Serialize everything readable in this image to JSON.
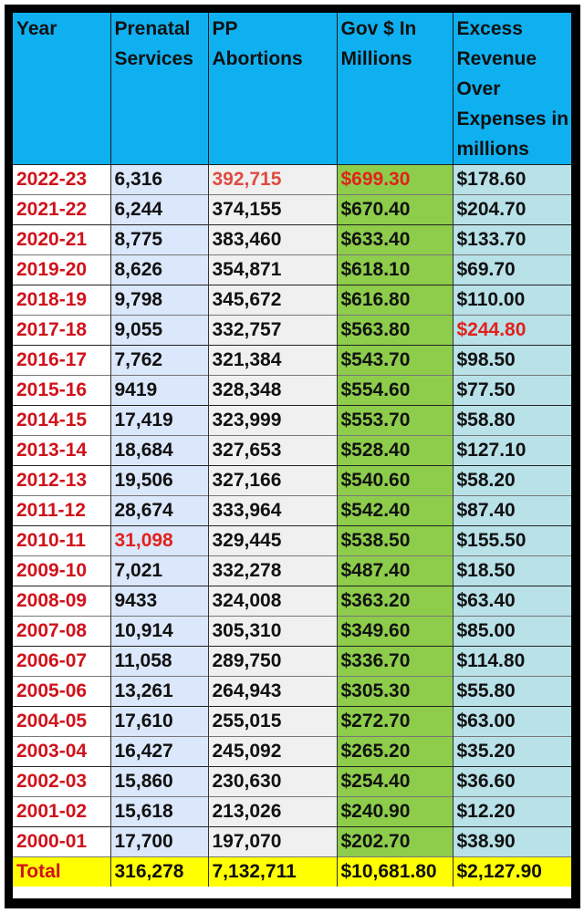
{
  "table": {
    "headers": {
      "year": [
        "Year"
      ],
      "prenatal": [
        "Prenatal",
        "Services"
      ],
      "pp_abortions": [
        "PP",
        "Abortions"
      ],
      "gov": [
        "Gov $ In",
        "Millions"
      ],
      "excess": [
        "Excess",
        "Revenue",
        "Over",
        "Expenses in",
        "millions"
      ]
    },
    "rows": [
      {
        "year": "2022-23",
        "prenatal": "6,316",
        "pp_abortions": "392,715",
        "gov": "$699.30",
        "excess": "$178.60",
        "highlight": [
          "pp_abortions",
          "gov"
        ]
      },
      {
        "year": "2021-22",
        "prenatal": "6,244",
        "pp_abortions": "374,155",
        "gov": "$670.40",
        "excess": "$204.70"
      },
      {
        "year": "2020-21",
        "prenatal": "8,775",
        "pp_abortions": "383,460",
        "gov": "$633.40",
        "excess": "$133.70"
      },
      {
        "year": "2019-20",
        "prenatal": "8,626",
        "pp_abortions": "354,871",
        "gov": "$618.10",
        "excess": "$69.70"
      },
      {
        "year": "2018-19",
        "prenatal": "9,798",
        "pp_abortions": "345,672",
        "gov": "$616.80",
        "excess": "$110.00"
      },
      {
        "year": "2017-18",
        "prenatal": "9,055",
        "pp_abortions": "332,757",
        "gov": "$563.80",
        "excess": "$244.80",
        "highlight": [
          "excess"
        ]
      },
      {
        "year": "2016-17",
        "prenatal": "7,762",
        "pp_abortions": "321,384",
        "gov": "$543.70",
        "excess": "$98.50"
      },
      {
        "year": "2015-16",
        "prenatal": "9419",
        "pp_abortions": "328,348",
        "gov": "$554.60",
        "excess": "$77.50"
      },
      {
        "year": "2014-15",
        "prenatal": "17,419",
        "pp_abortions": "323,999",
        "gov": "$553.70",
        "excess": "$58.80"
      },
      {
        "year": "2013-14",
        "prenatal": "18,684",
        "pp_abortions": "327,653",
        "gov": "$528.40",
        "excess": "$127.10"
      },
      {
        "year": "2012-13",
        "prenatal": "19,506",
        "pp_abortions": "327,166",
        "gov": "$540.60",
        "excess": "$58.20"
      },
      {
        "year": "2011-12",
        "prenatal": "28,674",
        "pp_abortions": "333,964",
        "gov": "$542.40",
        "excess": "$87.40"
      },
      {
        "year": "2010-11",
        "prenatal": "31,098",
        "pp_abortions": "329,445",
        "gov": "$538.50",
        "excess": "$155.50",
        "highlight": [
          "prenatal"
        ]
      },
      {
        "year": "2009-10",
        "prenatal": "7,021",
        "pp_abortions": "332,278",
        "gov": "$487.40",
        "excess": "$18.50"
      },
      {
        "year": "2008-09",
        "prenatal": "9433",
        "pp_abortions": "324,008",
        "gov": "$363.20",
        "excess": "$63.40"
      },
      {
        "year": "2007-08",
        "prenatal": "10,914",
        "pp_abortions": "305,310",
        "gov": "$349.60",
        "excess": "$85.00"
      },
      {
        "year": "2006-07",
        "prenatal": "11,058",
        "pp_abortions": "289,750",
        "gov": "$336.70",
        "excess": "$114.80"
      },
      {
        "year": "2005-06",
        "prenatal": "13,261",
        "pp_abortions": "264,943",
        "gov": "$305.30",
        "excess": "$55.80"
      },
      {
        "year": "2004-05",
        "prenatal": "17,610",
        "pp_abortions": "255,015",
        "gov": "$272.70",
        "excess": "$63.00"
      },
      {
        "year": "2003-04",
        "prenatal": "16,427",
        "pp_abortions": "245,092",
        "gov": "$265.20",
        "excess": "$35.20"
      },
      {
        "year": "2002-03",
        "prenatal": "15,860",
        "pp_abortions": "230,630",
        "gov": "$254.40",
        "excess": "$36.60"
      },
      {
        "year": "2001-02",
        "prenatal": "15,618",
        "pp_abortions": "213,026",
        "gov": "$240.90",
        "excess": "$12.20"
      },
      {
        "year": "2000-01",
        "prenatal": "17,700",
        "pp_abortions": "197,070",
        "gov": "$202.70",
        "excess": "$38.90"
      }
    ],
    "total": {
      "year": "Total",
      "prenatal": "316,278",
      "pp_abortions": "7,132,711",
      "gov": "$10,681.80",
      "excess": "$2,127.90"
    }
  },
  "colors": {
    "header_bg": "#0fb0f0",
    "year_text": "#d0121b",
    "prenatal_bg": "#dbe7fa",
    "pp_bg": "#f0f0f0",
    "gov_bg": "#8dcd4b",
    "excess_bg": "#b8e1e8",
    "total_bg": "#ffff00",
    "highlight_text": "#e0221c",
    "frame": "#000000"
  }
}
